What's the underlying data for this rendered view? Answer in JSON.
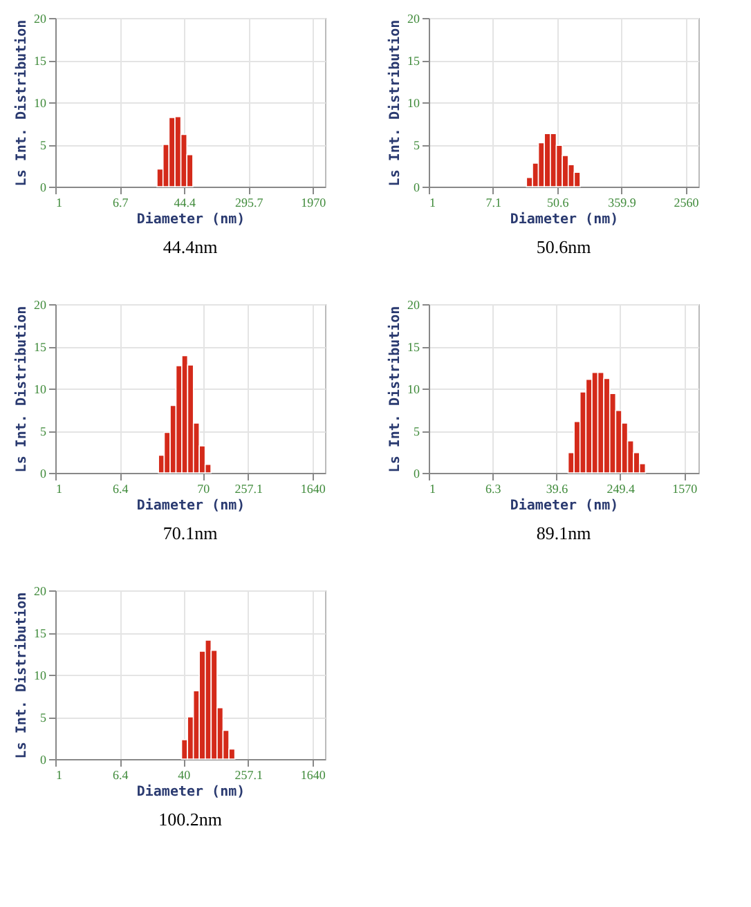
{
  "chart_data": [
    {
      "type": "histogram",
      "title": "44.4nm",
      "xlabel": "Diameter (nm)",
      "ylabel": "Ls Int. Distribution",
      "log": "x",
      "grid": true,
      "color": "#d42a1a",
      "bins": [
        20.0,
        23.9,
        28.5,
        34.0,
        40.5,
        48.3,
        57.6
      ],
      "values": [
        2.1,
        5.0,
        8.2,
        8.3,
        6.2,
        3.8
      ],
      "xlim": [
        1,
        2830
      ],
      "xticks": [
        1,
        6.7,
        44.4,
        295.7,
        1970
      ],
      "ylim": [
        0,
        20
      ],
      "yticks": [
        0,
        5,
        10,
        15,
        20
      ]
    },
    {
      "type": "histogram",
      "title": "50.6nm",
      "xlabel": "Diameter (nm)",
      "ylabel": "Ls Int. Distribution",
      "log": "x",
      "grid": true,
      "color": "#d42a1a",
      "bins": [
        19.8,
        23.8,
        28.5,
        34.2,
        41.1,
        49.3,
        59.2,
        71.0,
        85.2,
        102.2
      ],
      "values": [
        1.1,
        2.8,
        5.2,
        6.3,
        6.3,
        4.9,
        3.7,
        2.6,
        1.7
      ],
      "xlim": [
        1,
        3790
      ],
      "xticks": [
        1,
        7.1,
        50.6,
        359.9,
        2560
      ],
      "ylim": [
        0,
        20
      ],
      "yticks": [
        0,
        5,
        10,
        15,
        20
      ]
    },
    {
      "type": "histogram",
      "title": "70.1nm",
      "xlabel": "Diameter (nm)",
      "ylabel": "Ls Int. Distribution",
      "log": "x",
      "grid": true,
      "color": "#d42a1a",
      "bins": [
        19.5,
        23.0,
        27.3,
        32.3,
        38.2,
        45.2,
        53.4,
        63.2,
        74.8,
        88.5
      ],
      "values": [
        2.1,
        4.8,
        8.0,
        12.7,
        13.9,
        12.8,
        5.9,
        3.2,
        1.0
      ],
      "xlim": [
        1,
        2360
      ],
      "xticks": [
        1,
        6.4,
        70,
        257.1,
        1640
      ],
      "ylim": [
        0,
        20
      ],
      "yticks": [
        0,
        5,
        10,
        15,
        20
      ]
    },
    {
      "type": "histogram",
      "title": "89.1nm",
      "xlabel": "Diameter (nm)",
      "ylabel": "Ls Int. Distribution",
      "log": "x",
      "grid": true,
      "color": "#d42a1a",
      "bins": [
        55.6,
        66.0,
        78.3,
        93.0,
        110.4,
        131.0,
        155.5,
        184.6,
        219.2,
        260.2,
        308.8,
        366.6,
        435.2,
        516.6
      ],
      "values": [
        2.4,
        6.1,
        9.6,
        11.1,
        11.9,
        11.9,
        11.2,
        9.4,
        7.4,
        5.9,
        3.8,
        2.4,
        1.1
      ],
      "xlim": [
        1,
        2380
      ],
      "xticks": [
        1,
        6.3,
        39.6,
        249.4,
        1570
      ],
      "ylim": [
        0,
        20
      ],
      "yticks": [
        0,
        5,
        10,
        15,
        20
      ]
    },
    {
      "type": "histogram",
      "title": "100.2nm",
      "xlabel": "Diameter (nm)",
      "ylabel": "Ls Int. Distribution",
      "log": "x",
      "grid": true,
      "color": "#d42a1a",
      "bins": [
        37.9,
        45.0,
        53.3,
        63.2,
        75.0,
        88.9,
        105.5,
        125.1,
        148.4,
        176.0
      ],
      "values": [
        2.3,
        5.0,
        8.1,
        12.8,
        14.1,
        12.9,
        6.1,
        3.4,
        1.2
      ],
      "xlim": [
        1,
        2360
      ],
      "xticks": [
        1,
        6.4,
        40,
        257.1,
        1640
      ],
      "ylim": [
        0,
        20
      ],
      "yticks": [
        0,
        5,
        10,
        15,
        20
      ]
    }
  ]
}
